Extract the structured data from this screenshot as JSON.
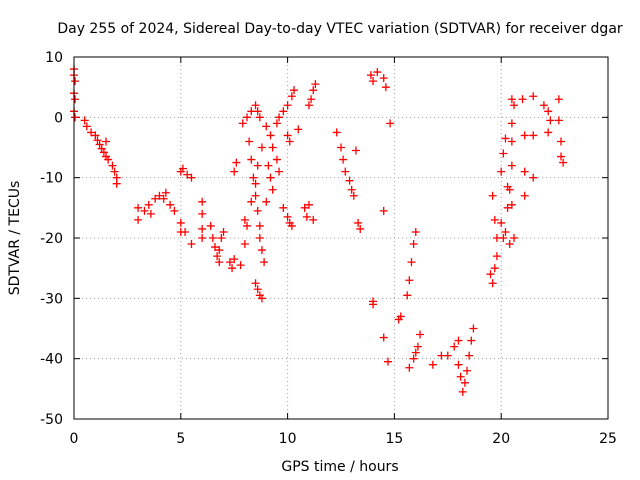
{
  "chart_data": {
    "type": "scatter",
    "title": "Day 255 of 2024, Sidereal Day-to-day VTEC variation (SDTVAR) for receiver dgar",
    "xlabel": "GPS time / hours",
    "ylabel": "SDTVAR / TECUs",
    "xlim": [
      0,
      25
    ],
    "ylim": [
      -50,
      10
    ],
    "xticks": [
      0,
      5,
      10,
      15,
      20,
      25
    ],
    "yticks": [
      -50,
      -40,
      -30,
      -20,
      -10,
      0,
      10
    ],
    "xtick_labels": [
      "0",
      "5",
      "10",
      "15",
      "20",
      "25"
    ],
    "ytick_labels": [
      "-50",
      "-40",
      "-30",
      "-20",
      "-10",
      "0",
      "10"
    ],
    "grid": true,
    "marker": "+",
    "color": "#ff0000",
    "series": [
      {
        "name": "SDTVAR",
        "points": [
          [
            0.0,
            8.0
          ],
          [
            0.0,
            7.0
          ],
          [
            0.05,
            6.0
          ],
          [
            0.0,
            4.0
          ],
          [
            0.05,
            3.0
          ],
          [
            0.0,
            1.0
          ],
          [
            0.05,
            0.0
          ],
          [
            0.5,
            -0.5
          ],
          [
            0.6,
            -1.5
          ],
          [
            0.8,
            -2.5
          ],
          [
            1.0,
            -3.0
          ],
          [
            1.1,
            -3.8
          ],
          [
            1.2,
            -4.5
          ],
          [
            1.3,
            -5.2
          ],
          [
            1.4,
            -5.8
          ],
          [
            1.5,
            -6.5
          ],
          [
            1.6,
            -7.0
          ],
          [
            1.8,
            -8.0
          ],
          [
            1.9,
            -9.0
          ],
          [
            2.0,
            -10.0
          ],
          [
            2.0,
            -11.0
          ],
          [
            1.5,
            -4.0
          ],
          [
            3.0,
            -15.0
          ],
          [
            3.0,
            -17.0
          ],
          [
            3.3,
            -15.5
          ],
          [
            3.5,
            -14.5
          ],
          [
            3.8,
            -13.5
          ],
          [
            4.0,
            -13.0
          ],
          [
            4.2,
            -13.5
          ],
          [
            3.6,
            -16.0
          ],
          [
            4.3,
            -12.5
          ],
          [
            4.5,
            -14.5
          ],
          [
            4.7,
            -15.5
          ],
          [
            5.0,
            -17.5
          ],
          [
            5.2,
            -19.0
          ],
          [
            5.5,
            -21.0
          ],
          [
            5.0,
            -9.0
          ],
          [
            5.1,
            -8.5
          ],
          [
            5.3,
            -9.5
          ],
          [
            5.5,
            -10.0
          ],
          [
            5.0,
            -19.0
          ],
          [
            6.0,
            -14.0
          ],
          [
            6.0,
            -16.0
          ],
          [
            6.0,
            -18.5
          ],
          [
            6.0,
            -20.0
          ],
          [
            6.4,
            -18.0
          ],
          [
            6.5,
            -20.0
          ],
          [
            6.6,
            -21.5
          ],
          [
            6.7,
            -23.0
          ],
          [
            6.8,
            -22.0
          ],
          [
            6.9,
            -20.0
          ],
          [
            7.0,
            -19.0
          ],
          [
            6.8,
            -24.0
          ],
          [
            7.3,
            -24.0
          ],
          [
            7.4,
            -25.0
          ],
          [
            7.5,
            -9.0
          ],
          [
            7.6,
            -7.5
          ],
          [
            7.5,
            -23.5
          ],
          [
            7.8,
            -24.5
          ],
          [
            8.0,
            -21.0
          ],
          [
            8.1,
            -18.0
          ],
          [
            8.3,
            -14.0
          ],
          [
            8.5,
            -11.0
          ],
          [
            8.6,
            -8.0
          ],
          [
            8.8,
            -5.0
          ],
          [
            7.9,
            -1.0
          ],
          [
            8.1,
            0.0
          ],
          [
            8.3,
            1.0
          ],
          [
            8.5,
            2.0
          ],
          [
            8.6,
            1.0
          ],
          [
            8.7,
            0.0
          ],
          [
            8.2,
            -4.0
          ],
          [
            8.3,
            -7.0
          ],
          [
            8.4,
            -10.0
          ],
          [
            8.5,
            -13.0
          ],
          [
            8.6,
            -15.5
          ],
          [
            8.7,
            -18.0
          ],
          [
            8.5,
            -27.5
          ],
          [
            8.6,
            -28.5
          ],
          [
            8.7,
            -29.5
          ],
          [
            8.8,
            -30.0
          ],
          [
            8.7,
            -20.0
          ],
          [
            8.8,
            -22.0
          ],
          [
            8.9,
            -24.0
          ],
          [
            8.0,
            -17.0
          ],
          [
            9.0,
            -1.5
          ],
          [
            9.2,
            -3.0
          ],
          [
            9.3,
            -5.0
          ],
          [
            9.1,
            -8.0
          ],
          [
            9.2,
            -10.0
          ],
          [
            9.3,
            -12.0
          ],
          [
            9.0,
            -14.0
          ],
          [
            9.5,
            -7.0
          ],
          [
            9.6,
            -9.0
          ],
          [
            9.5,
            -1.0
          ],
          [
            9.6,
            0.0
          ],
          [
            9.8,
            1.0
          ],
          [
            10.0,
            2.0
          ],
          [
            10.2,
            3.5
          ],
          [
            10.3,
            4.5
          ],
          [
            10.0,
            -3.0
          ],
          [
            10.1,
            -4.0
          ],
          [
            10.0,
            -16.5
          ],
          [
            10.1,
            -17.5
          ],
          [
            10.2,
            -18.0
          ],
          [
            9.8,
            -15.0
          ],
          [
            10.5,
            -2.0
          ],
          [
            10.8,
            -15.0
          ],
          [
            10.9,
            -16.5
          ],
          [
            11.0,
            -14.5
          ],
          [
            11.2,
            -17.0
          ],
          [
            11.0,
            2.0
          ],
          [
            11.1,
            3.0
          ],
          [
            11.2,
            4.5
          ],
          [
            11.3,
            5.5
          ],
          [
            12.3,
            -2.5
          ],
          [
            12.5,
            -5.0
          ],
          [
            12.6,
            -7.0
          ],
          [
            12.7,
            -9.0
          ],
          [
            12.9,
            -10.5
          ],
          [
            13.2,
            -5.5
          ],
          [
            13.0,
            -12.0
          ],
          [
            13.1,
            -13.0
          ],
          [
            13.3,
            -17.5
          ],
          [
            13.4,
            -18.5
          ],
          [
            13.9,
            7.0
          ],
          [
            14.0,
            6.0
          ],
          [
            14.2,
            7.5
          ],
          [
            14.5,
            6.5
          ],
          [
            14.6,
            5.0
          ],
          [
            14.0,
            -30.5
          ],
          [
            14.0,
            -31.0
          ],
          [
            14.5,
            -36.5
          ],
          [
            14.7,
            -40.5
          ],
          [
            14.8,
            -1.0
          ],
          [
            14.5,
            -15.5
          ],
          [
            15.2,
            -33.5
          ],
          [
            15.3,
            -33.0
          ],
          [
            15.6,
            -29.5
          ],
          [
            15.7,
            -27.0
          ],
          [
            15.8,
            -24.0
          ],
          [
            15.9,
            -21.0
          ],
          [
            16.0,
            -19.0
          ],
          [
            15.7,
            -41.5
          ],
          [
            15.9,
            -40.0
          ],
          [
            16.0,
            -39.0
          ],
          [
            16.1,
            -38.0
          ],
          [
            16.2,
            -36.0
          ],
          [
            16.8,
            -41.0
          ],
          [
            17.2,
            -39.5
          ],
          [
            17.5,
            -39.5
          ],
          [
            17.8,
            -38.0
          ],
          [
            18.0,
            -41.0
          ],
          [
            18.1,
            -43.0
          ],
          [
            18.2,
            -45.5
          ],
          [
            18.3,
            -44.0
          ],
          [
            18.4,
            -42.0
          ],
          [
            18.5,
            -39.5
          ],
          [
            18.6,
            -37.0
          ],
          [
            18.7,
            -35.0
          ],
          [
            18.0,
            -37.0
          ],
          [
            19.5,
            -26.0
          ],
          [
            19.6,
            -27.5
          ],
          [
            19.7,
            -25.0
          ],
          [
            19.6,
            -13.0
          ],
          [
            19.7,
            -17.0
          ],
          [
            19.8,
            -20.0
          ],
          [
            19.8,
            -23.0
          ],
          [
            20.0,
            -17.5
          ],
          [
            20.0,
            -9.0
          ],
          [
            20.1,
            -6.0
          ],
          [
            20.2,
            -3.5
          ],
          [
            20.1,
            -20.0
          ],
          [
            20.2,
            -19.0
          ],
          [
            20.3,
            -15.0
          ],
          [
            20.4,
            -12.0
          ],
          [
            20.5,
            -14.5
          ],
          [
            20.3,
            -11.5
          ],
          [
            20.5,
            -8.0
          ],
          [
            20.5,
            -4.0
          ],
          [
            20.5,
            -1.0
          ],
          [
            20.6,
            2.0
          ],
          [
            20.5,
            3.0
          ],
          [
            20.4,
            -21.0
          ],
          [
            20.6,
            -20.0
          ],
          [
            21.0,
            3.0
          ],
          [
            21.1,
            -3.0
          ],
          [
            21.1,
            -9.0
          ],
          [
            21.1,
            -13.0
          ],
          [
            21.5,
            3.5
          ],
          [
            21.5,
            -3.0
          ],
          [
            21.5,
            -10.0
          ],
          [
            22.0,
            2.0
          ],
          [
            22.2,
            1.0
          ],
          [
            22.2,
            -2.5
          ],
          [
            22.3,
            -0.5
          ],
          [
            22.7,
            3.0
          ],
          [
            22.7,
            -0.5
          ],
          [
            22.8,
            -4.0
          ],
          [
            22.8,
            -6.5
          ],
          [
            22.9,
            -7.5
          ]
        ]
      }
    ]
  }
}
